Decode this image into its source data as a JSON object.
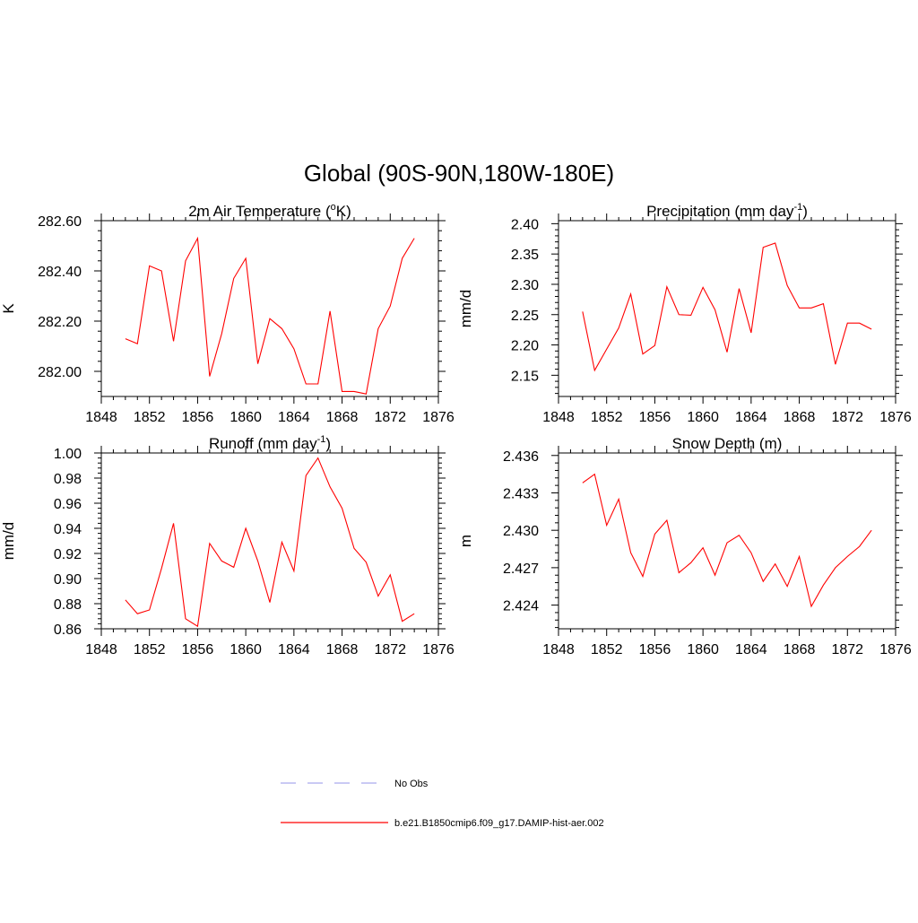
{
  "figure": {
    "title": "Global (90S-90N,180W-180E)"
  },
  "chart_data": [
    {
      "type": "line",
      "title": "2m Air Temperature (",
      "title_sup": "o",
      "title_tail": "K)",
      "xlabel": "",
      "ylabel": "K",
      "xlim": [
        1848,
        1876
      ],
      "ylim": [
        281.9,
        282.6
      ],
      "xticks": [
        "1848",
        "1852",
        "1856",
        "1860",
        "1864",
        "1868",
        "1872",
        "1876"
      ],
      "yticks": [
        "282.00",
        "282.20",
        "282.40",
        "282.60"
      ],
      "series": [
        {
          "color": "#ff0000",
          "x": [
            1850,
            1851,
            1852,
            1853,
            1854,
            1855,
            1856,
            1857,
            1858,
            1859,
            1860,
            1861,
            1862,
            1863,
            1864,
            1865,
            1866,
            1867,
            1868,
            1869,
            1870,
            1871,
            1872,
            1873,
            1874
          ],
          "values": [
            282.13,
            282.11,
            282.42,
            282.4,
            282.12,
            282.44,
            282.53,
            281.98,
            282.15,
            282.37,
            282.45,
            282.03,
            282.21,
            282.17,
            282.09,
            281.95,
            281.95,
            282.24,
            281.92,
            281.92,
            281.91,
            282.17,
            282.26,
            282.45,
            282.53
          ]
        }
      ]
    },
    {
      "type": "line",
      "title": "Precipitation (mm day",
      "title_sup": "-1",
      "title_tail": ")",
      "xlabel": "",
      "ylabel": "mm/d",
      "xlim": [
        1848,
        1876
      ],
      "ylim": [
        2.115,
        2.405
      ],
      "xticks": [
        "1848",
        "1852",
        "1856",
        "1860",
        "1864",
        "1868",
        "1872",
        "1876"
      ],
      "yticks": [
        "2.15",
        "2.20",
        "2.25",
        "2.30",
        "2.35",
        "2.40"
      ],
      "series": [
        {
          "color": "#ff0000",
          "x": [
            1850,
            1851,
            1852,
            1853,
            1854,
            1855,
            1856,
            1857,
            1858,
            1859,
            1860,
            1861,
            1862,
            1863,
            1864,
            1865,
            1866,
            1867,
            1868,
            1869,
            1870,
            1871,
            1872,
            1873,
            1874
          ],
          "values": [
            2.255,
            2.158,
            2.193,
            2.228,
            2.284,
            2.185,
            2.199,
            2.296,
            2.25,
            2.249,
            2.295,
            2.258,
            2.188,
            2.293,
            2.22,
            2.361,
            2.368,
            2.298,
            2.261,
            2.261,
            2.268,
            2.168,
            2.236,
            2.236,
            2.226
          ]
        }
      ]
    },
    {
      "type": "line",
      "title": "Runoff (mm day",
      "title_sup": "-1",
      "title_tail": ")",
      "xlabel": "",
      "ylabel": "mm/d",
      "xlim": [
        1848,
        1876
      ],
      "ylim": [
        0.86,
        1.0
      ],
      "xticks": [
        "1848",
        "1852",
        "1856",
        "1860",
        "1864",
        "1868",
        "1872",
        "1876"
      ],
      "yticks": [
        "0.86",
        "0.88",
        "0.90",
        "0.92",
        "0.94",
        "0.96",
        "0.98",
        "1.00"
      ],
      "series": [
        {
          "color": "#ff0000",
          "x": [
            1850,
            1851,
            1852,
            1853,
            1854,
            1855,
            1856,
            1857,
            1858,
            1859,
            1860,
            1861,
            1862,
            1863,
            1864,
            1865,
            1866,
            1867,
            1868,
            1869,
            1870,
            1871,
            1872,
            1873,
            1874
          ],
          "values": [
            0.883,
            0.872,
            0.875,
            0.908,
            0.944,
            0.868,
            0.862,
            0.928,
            0.914,
            0.909,
            0.94,
            0.914,
            0.881,
            0.929,
            0.906,
            0.982,
            0.996,
            0.973,
            0.956,
            0.924,
            0.913,
            0.886,
            0.903,
            0.866,
            0.872
          ]
        }
      ]
    },
    {
      "type": "line",
      "title": "Snow Depth (m)",
      "title_sup": "",
      "title_tail": "",
      "xlabel": "",
      "ylabel": "m",
      "xlim": [
        1848,
        1876
      ],
      "ylim": [
        2.4221,
        2.4362
      ],
      "xticks": [
        "1848",
        "1852",
        "1856",
        "1860",
        "1864",
        "1868",
        "1872",
        "1876"
      ],
      "yticks": [
        "2.424",
        "2.427",
        "2.430",
        "2.433",
        "2.436"
      ],
      "series": [
        {
          "color": "#ff0000",
          "x": [
            1850,
            1851,
            1852,
            1853,
            1854,
            1855,
            1856,
            1857,
            1858,
            1859,
            1860,
            1861,
            1862,
            1863,
            1864,
            1865,
            1866,
            1867,
            1868,
            1869,
            1870,
            1871,
            1872,
            1873,
            1874
          ],
          "values": [
            2.4338,
            2.4345,
            2.4304,
            2.4325,
            2.4282,
            2.4263,
            2.4297,
            2.4308,
            2.4266,
            2.4274,
            2.4286,
            2.4264,
            2.429,
            2.4296,
            2.4282,
            2.4259,
            2.4273,
            2.4255,
            2.4279,
            2.4239,
            2.4256,
            2.427,
            2.4279,
            2.4287,
            2.43
          ]
        }
      ]
    }
  ],
  "legend": {
    "items": [
      {
        "label": "No Obs",
        "color": "#aaaaee",
        "dash": true
      },
      {
        "label": "b.e21.B1850cmip6.f09_g17.DAMIP-hist-aer.002",
        "color": "#ff0000",
        "dash": false
      }
    ]
  }
}
